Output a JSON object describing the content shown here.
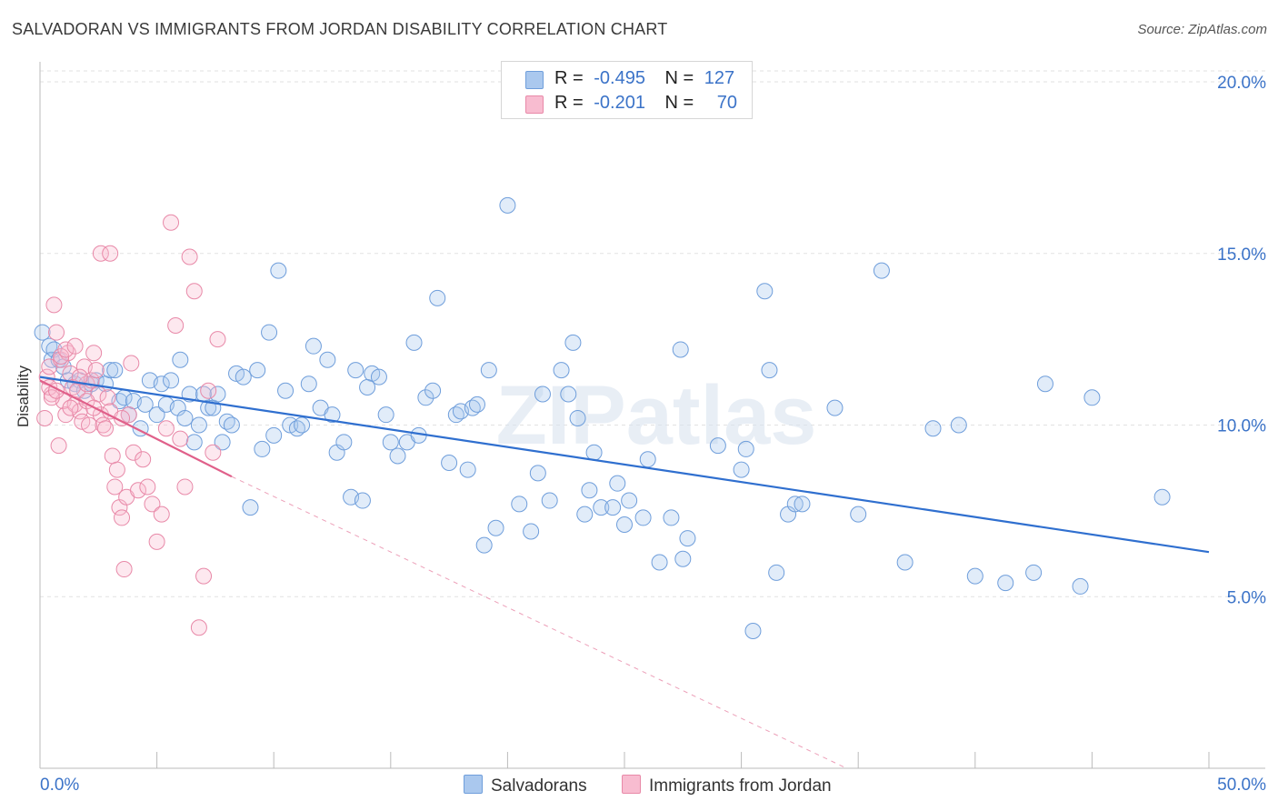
{
  "title": "SALVADORAN VS IMMIGRANTS FROM JORDAN DISABILITY CORRELATION CHART",
  "source": "Source: ZipAtlas.com",
  "watermark": "ZIPatlas",
  "legend": {
    "rows": [
      {
        "r_label": "R =",
        "r_value": "-0.495",
        "n_label": "N =",
        "n_value": "127",
        "color": "#aac8ee",
        "border": "#6f9edb"
      },
      {
        "r_label": "R =",
        "r_value": "-0.201",
        "n_label": "N =",
        "n_value": "70",
        "color": "#f8bcd0",
        "border": "#e889a8"
      }
    ]
  },
  "bottom_legend": [
    {
      "label": "Salvadorans",
      "color": "#aac8ee",
      "border": "#6f9edb"
    },
    {
      "label": "Immigrants from Jordan",
      "color": "#f8bcd0",
      "border": "#e889a8"
    }
  ],
  "chart_data": {
    "type": "scatter",
    "ylabel": "Disability",
    "xlim": [
      0,
      50
    ],
    "ylim": [
      0,
      20
    ],
    "x_tick_labels": [
      "0.0%",
      "50.0%"
    ],
    "y_ticks": [
      5,
      10,
      15,
      20
    ],
    "y_tick_labels": [
      "5.0%",
      "10.0%",
      "15.0%",
      "20.0%"
    ],
    "grid": true,
    "colors": {
      "blue_point": "#6f9edb",
      "blue_line": "#2f6fcf",
      "pink_point": "#e889a8",
      "pink_line": "#e0608a",
      "axis_text": "#3b73c8"
    },
    "series": [
      {
        "name": "Salvadorans",
        "trend": {
          "x0": 0,
          "y0": 11.4,
          "x1": 50,
          "y1": 6.3
        },
        "points": [
          [
            0.1,
            12.7
          ],
          [
            0.4,
            12.3
          ],
          [
            0.5,
            11.9
          ],
          [
            0.6,
            12.2
          ],
          [
            0.8,
            11.9
          ],
          [
            1.0,
            11.7
          ],
          [
            1.2,
            11.3
          ],
          [
            1.5,
            11.2
          ],
          [
            1.7,
            11.3
          ],
          [
            1.9,
            11.0
          ],
          [
            2.2,
            11.2
          ],
          [
            2.4,
            11.3
          ],
          [
            2.8,
            11.2
          ],
          [
            3.0,
            11.6
          ],
          [
            3.2,
            11.6
          ],
          [
            3.4,
            10.7
          ],
          [
            3.6,
            10.8
          ],
          [
            3.8,
            10.3
          ],
          [
            4.0,
            10.7
          ],
          [
            4.3,
            9.9
          ],
          [
            4.5,
            10.6
          ],
          [
            4.7,
            11.3
          ],
          [
            5.0,
            10.3
          ],
          [
            5.2,
            11.2
          ],
          [
            5.4,
            10.6
          ],
          [
            5.6,
            11.3
          ],
          [
            5.9,
            10.5
          ],
          [
            6.0,
            11.9
          ],
          [
            6.2,
            10.2
          ],
          [
            6.4,
            10.9
          ],
          [
            6.6,
            9.5
          ],
          [
            6.8,
            10.0
          ],
          [
            7.0,
            10.9
          ],
          [
            7.2,
            10.5
          ],
          [
            7.4,
            10.5
          ],
          [
            7.6,
            10.9
          ],
          [
            7.8,
            9.5
          ],
          [
            8.0,
            10.1
          ],
          [
            8.2,
            10.0
          ],
          [
            8.4,
            11.5
          ],
          [
            8.7,
            11.4
          ],
          [
            9.0,
            7.6
          ],
          [
            9.3,
            11.6
          ],
          [
            9.5,
            9.3
          ],
          [
            9.8,
            12.7
          ],
          [
            10.0,
            9.7
          ],
          [
            10.2,
            14.5
          ],
          [
            10.5,
            11.0
          ],
          [
            10.7,
            10.0
          ],
          [
            11.0,
            9.9
          ],
          [
            11.2,
            10.0
          ],
          [
            11.5,
            11.2
          ],
          [
            11.7,
            12.3
          ],
          [
            12.0,
            10.5
          ],
          [
            12.3,
            11.9
          ],
          [
            12.5,
            10.3
          ],
          [
            12.7,
            9.2
          ],
          [
            13.0,
            9.5
          ],
          [
            13.3,
            7.9
          ],
          [
            13.5,
            11.6
          ],
          [
            13.8,
            7.8
          ],
          [
            14.2,
            11.5
          ],
          [
            14.5,
            11.4
          ],
          [
            14.0,
            11.1
          ],
          [
            14.8,
            10.3
          ],
          [
            15.0,
            9.5
          ],
          [
            15.3,
            9.1
          ],
          [
            15.7,
            9.5
          ],
          [
            16.0,
            12.4
          ],
          [
            16.2,
            9.7
          ],
          [
            16.5,
            10.8
          ],
          [
            16.8,
            11.0
          ],
          [
            17.0,
            13.7
          ],
          [
            17.5,
            8.9
          ],
          [
            17.8,
            10.3
          ],
          [
            18.0,
            10.4
          ],
          [
            18.3,
            8.7
          ],
          [
            18.5,
            10.5
          ],
          [
            18.7,
            10.6
          ],
          [
            19.0,
            6.5
          ],
          [
            19.2,
            11.6
          ],
          [
            19.5,
            7.0
          ],
          [
            20.0,
            16.4
          ],
          [
            20.5,
            7.7
          ],
          [
            21.0,
            6.9
          ],
          [
            21.3,
            8.6
          ],
          [
            21.5,
            10.9
          ],
          [
            21.8,
            7.8
          ],
          [
            22.3,
            11.6
          ],
          [
            22.6,
            10.9
          ],
          [
            22.8,
            12.4
          ],
          [
            23.0,
            10.2
          ],
          [
            23.3,
            7.4
          ],
          [
            23.5,
            8.1
          ],
          [
            23.7,
            9.2
          ],
          [
            24.0,
            7.6
          ],
          [
            24.5,
            7.6
          ],
          [
            24.7,
            8.3
          ],
          [
            25.0,
            7.1
          ],
          [
            25.2,
            7.8
          ],
          [
            25.8,
            7.3
          ],
          [
            26.0,
            9.0
          ],
          [
            26.5,
            6.0
          ],
          [
            27.0,
            7.3
          ],
          [
            27.4,
            12.2
          ],
          [
            27.5,
            6.1
          ],
          [
            27.7,
            6.7
          ],
          [
            29.0,
            9.4
          ],
          [
            30.0,
            8.7
          ],
          [
            30.2,
            9.3
          ],
          [
            30.5,
            4.0
          ],
          [
            31.0,
            13.9
          ],
          [
            31.2,
            11.6
          ],
          [
            31.5,
            5.7
          ],
          [
            32.0,
            7.4
          ],
          [
            32.3,
            7.7
          ],
          [
            32.6,
            7.7
          ],
          [
            34.0,
            10.5
          ],
          [
            35.0,
            7.4
          ],
          [
            36.0,
            14.5
          ],
          [
            37.0,
            6.0
          ],
          [
            38.2,
            9.9
          ],
          [
            39.3,
            10.0
          ],
          [
            40.0,
            5.6
          ],
          [
            41.3,
            5.4
          ],
          [
            42.5,
            5.7
          ],
          [
            43.0,
            11.2
          ],
          [
            44.5,
            5.3
          ],
          [
            45.0,
            10.8
          ],
          [
            48.0,
            7.9
          ]
        ]
      },
      {
        "name": "Immigrants from Jordan",
        "trend": {
          "x0": 0,
          "y0": 11.3,
          "x1": 8.2,
          "y1": 8.5
        },
        "trend_dashed": {
          "x0": 8.2,
          "y0": 8.5,
          "x1": 34.5,
          "y1": 0.0
        },
        "points": [
          [
            0.2,
            10.2
          ],
          [
            0.3,
            11.4
          ],
          [
            0.4,
            11.7
          ],
          [
            0.5,
            10.9
          ],
          [
            0.6,
            13.5
          ],
          [
            0.7,
            12.7
          ],
          [
            0.8,
            9.4
          ],
          [
            0.9,
            11.9
          ],
          [
            1.0,
            10.7
          ],
          [
            1.1,
            10.3
          ],
          [
            1.2,
            12.1
          ],
          [
            1.3,
            11.5
          ],
          [
            1.4,
            11.1
          ],
          [
            1.5,
            10.6
          ],
          [
            1.6,
            11.0
          ],
          [
            1.7,
            10.4
          ],
          [
            1.8,
            10.1
          ],
          [
            1.9,
            11.7
          ],
          [
            2.0,
            11.2
          ],
          [
            2.1,
            10.0
          ],
          [
            2.2,
            11.3
          ],
          [
            2.3,
            12.1
          ],
          [
            2.4,
            11.6
          ],
          [
            2.5,
            10.9
          ],
          [
            2.6,
            10.3
          ],
          [
            2.7,
            10.0
          ],
          [
            2.8,
            9.9
          ],
          [
            2.9,
            10.8
          ],
          [
            3.0,
            10.4
          ],
          [
            3.1,
            9.1
          ],
          [
            3.2,
            8.2
          ],
          [
            3.3,
            8.7
          ],
          [
            3.4,
            7.6
          ],
          [
            3.5,
            7.3
          ],
          [
            3.6,
            5.8
          ],
          [
            3.7,
            7.9
          ],
          [
            3.8,
            10.3
          ],
          [
            3.9,
            11.8
          ],
          [
            4.0,
            9.2
          ],
          [
            4.2,
            8.1
          ],
          [
            4.4,
            9.0
          ],
          [
            4.6,
            8.2
          ],
          [
            4.8,
            7.7
          ],
          [
            5.0,
            6.6
          ],
          [
            5.2,
            7.4
          ],
          [
            5.4,
            9.9
          ],
          [
            5.6,
            15.9
          ],
          [
            5.8,
            12.9
          ],
          [
            6.0,
            9.6
          ],
          [
            6.2,
            8.2
          ],
          [
            6.4,
            14.9
          ],
          [
            6.6,
            13.9
          ],
          [
            6.8,
            4.1
          ],
          [
            7.0,
            5.6
          ],
          [
            7.2,
            11.0
          ],
          [
            7.4,
            9.2
          ],
          [
            7.6,
            12.5
          ],
          [
            0.4,
            11.1
          ],
          [
            0.5,
            10.8
          ],
          [
            0.7,
            11.0
          ],
          [
            0.9,
            12.0
          ],
          [
            1.1,
            12.2
          ],
          [
            1.3,
            10.5
          ],
          [
            1.5,
            12.3
          ],
          [
            1.7,
            11.4
          ],
          [
            2.0,
            10.7
          ],
          [
            2.3,
            10.5
          ],
          [
            2.6,
            15.0
          ],
          [
            3.0,
            15.0
          ],
          [
            3.5,
            10.2
          ]
        ]
      }
    ]
  }
}
